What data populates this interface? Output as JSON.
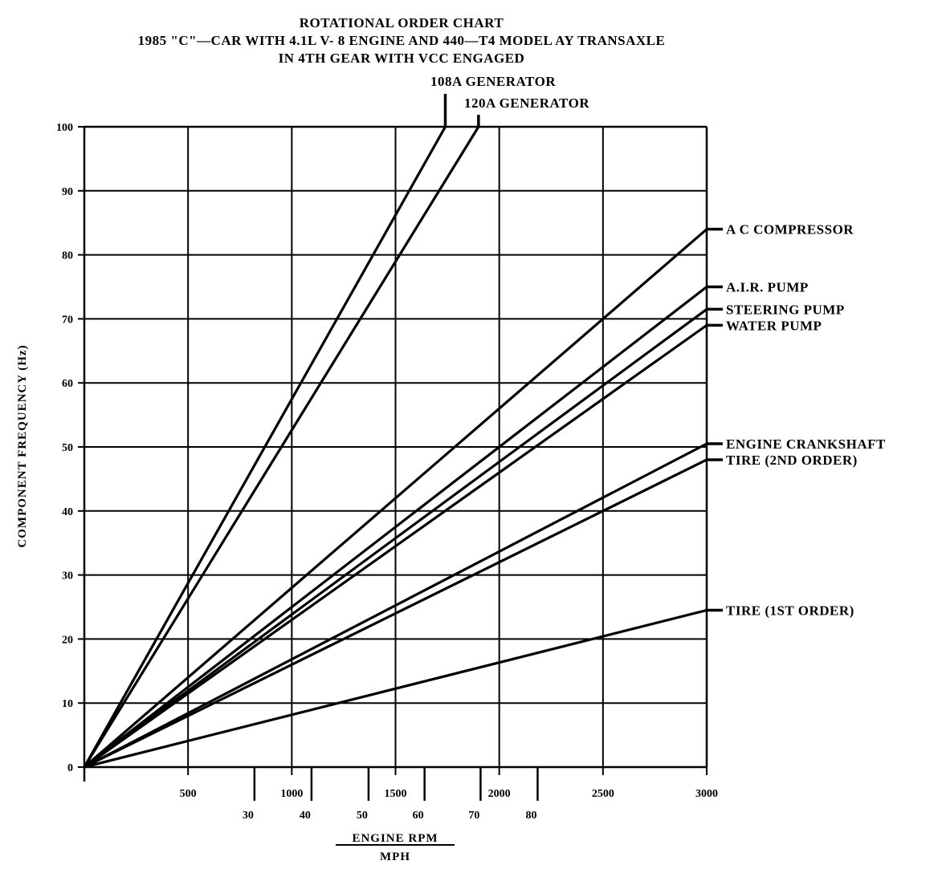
{
  "chart_data": {
    "type": "line",
    "title_lines": [
      "ROTATIONAL ORDER CHART",
      "1985 \"C\"—CAR WITH 4.1L V- 8 ENGINE AND 440—T4 MODEL AY TRANSAXLE",
      "IN 4TH GEAR WITH VCC ENGAGED"
    ],
    "xlabel": "ENGINE RPM",
    "xlabel2": "MPH",
    "ylabel": "COMPONENT FREQUENCY (Hz)",
    "xlim": [
      0,
      3000
    ],
    "ylim": [
      0,
      100
    ],
    "x_ticks": [
      500,
      1000,
      1500,
      2000,
      2500,
      3000
    ],
    "x_tick_labels": [
      "500",
      "1000",
      "1500",
      "2000",
      "2500",
      "3000"
    ],
    "y_ticks": [
      0,
      10,
      20,
      30,
      40,
      50,
      60,
      70,
      80,
      90,
      100
    ],
    "y_tick_labels": [
      "0",
      "10",
      "20",
      "30",
      "40",
      "50",
      "60",
      "70",
      "80",
      "90",
      "100"
    ],
    "mph_ticks": [
      {
        "mph": 30,
        "rpm": 820,
        "label": "30"
      },
      {
        "mph": 40,
        "rpm": 1095,
        "label": "40"
      },
      {
        "mph": 50,
        "rpm": 1370,
        "label": "50"
      },
      {
        "mph": 60,
        "rpm": 1640,
        "label": "60"
      },
      {
        "mph": 70,
        "rpm": 1910,
        "label": "70"
      },
      {
        "mph": 80,
        "rpm": 2185,
        "label": "80"
      }
    ],
    "grid": true,
    "series": [
      {
        "name": "108A GENERATOR",
        "x": [
          0,
          1740
        ],
        "y": [
          0,
          100
        ]
      },
      {
        "name": "120A GENERATOR",
        "x": [
          0,
          1900
        ],
        "y": [
          0,
          100
        ]
      },
      {
        "name": "A C COMPRESSOR",
        "x": [
          0,
          3000
        ],
        "y": [
          0,
          84
        ]
      },
      {
        "name": "A.I.R. PUMP",
        "x": [
          0,
          3000
        ],
        "y": [
          0,
          75
        ]
      },
      {
        "name": "STEERING PUMP",
        "x": [
          0,
          3000
        ],
        "y": [
          0,
          71.5
        ]
      },
      {
        "name": "WATER PUMP",
        "x": [
          0,
          3000
        ],
        "y": [
          0,
          69
        ]
      },
      {
        "name": "ENGINE CRANKSHAFT",
        "x": [
          0,
          3000
        ],
        "y": [
          0,
          50.5
        ]
      },
      {
        "name": "TIRE (2ND ORDER)",
        "x": [
          0,
          3000
        ],
        "y": [
          0,
          48
        ]
      },
      {
        "name": "TIRE (1ST ORDER)",
        "x": [
          0,
          3000
        ],
        "y": [
          0,
          24.5
        ]
      }
    ]
  }
}
